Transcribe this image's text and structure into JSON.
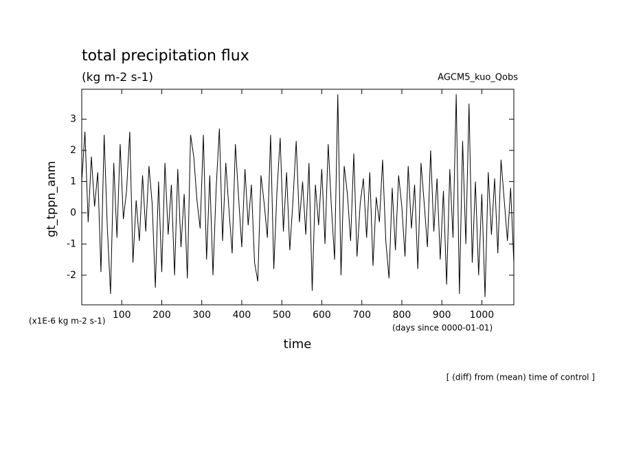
{
  "chart_data": {
    "type": "line",
    "title": "total precipitation flux",
    "subtitle": "(kg m-2 s-1)",
    "experiment": "AGCM5_kuo_Qobs",
    "y_label": "gt_tppn_anm",
    "x_label": "time",
    "y_unit": "(x1E-6 kg m-2 s-1)",
    "x_unit": "(days since 0000-01-01)",
    "note": "[ (diff) from (mean) time of control ]",
    "color": "#000000",
    "xlim": [
      0,
      1080
    ],
    "ylim": [
      -2.95,
      3.96
    ],
    "xticks": [
      100,
      200,
      300,
      400,
      500,
      600,
      700,
      800,
      900,
      1000
    ],
    "yticks": [
      -2,
      -1,
      0,
      1,
      2,
      3
    ],
    "x": [
      0,
      8,
      16,
      24,
      32,
      40,
      48,
      56,
      64,
      72,
      80,
      88,
      96,
      104,
      112,
      120,
      128,
      136,
      144,
      152,
      160,
      168,
      176,
      184,
      192,
      200,
      208,
      216,
      224,
      232,
      240,
      248,
      256,
      264,
      272,
      280,
      288,
      296,
      304,
      312,
      320,
      328,
      336,
      344,
      352,
      360,
      368,
      376,
      384,
      392,
      400,
      408,
      416,
      424,
      432,
      440,
      448,
      456,
      464,
      472,
      480,
      488,
      496,
      504,
      512,
      520,
      528,
      536,
      544,
      552,
      560,
      568,
      576,
      584,
      592,
      600,
      608,
      616,
      624,
      632,
      640,
      648,
      656,
      664,
      672,
      680,
      688,
      696,
      704,
      712,
      720,
      728,
      736,
      744,
      752,
      760,
      768,
      776,
      784,
      792,
      800,
      808,
      816,
      824,
      832,
      840,
      848,
      856,
      864,
      872,
      880,
      888,
      896,
      904,
      912,
      920,
      928,
      936,
      944,
      952,
      960,
      968,
      976,
      984,
      992,
      1000,
      1008,
      1016,
      1024,
      1032,
      1040,
      1048,
      1056,
      1064,
      1072,
      1080
    ],
    "values": [
      1.0,
      2.6,
      -0.3,
      1.8,
      0.2,
      1.3,
      -1.9,
      2.5,
      -0.5,
      -2.6,
      1.6,
      -0.8,
      2.2,
      -0.2,
      0.7,
      2.6,
      -1.6,
      0.4,
      -0.9,
      1.2,
      -0.6,
      1.5,
      0.3,
      -2.4,
      1.0,
      -1.9,
      1.6,
      -0.7,
      0.9,
      -2.0,
      1.4,
      -1.1,
      0.6,
      -2.1,
      2.5,
      1.8,
      0.4,
      -0.5,
      2.5,
      -1.5,
      1.2,
      -2.0,
      0.8,
      2.7,
      -0.9,
      1.6,
      0.1,
      -1.3,
      2.2,
      0.5,
      -1.1,
      1.4,
      -0.4,
      0.9,
      -1.6,
      -2.2,
      1.2,
      0.3,
      -0.8,
      2.5,
      -1.8,
      0.7,
      2.4,
      -0.6,
      1.3,
      -1.2,
      0.4,
      2.3,
      -0.3,
      1.0,
      -0.7,
      1.6,
      -2.5,
      0.9,
      -0.4,
      1.4,
      -1.0,
      2.2,
      0.2,
      -1.5,
      3.8,
      -2.0,
      1.5,
      0.6,
      -0.9,
      1.9,
      -1.4,
      0.3,
      1.1,
      -0.8,
      1.3,
      -1.7,
      0.5,
      -0.3,
      1.7,
      -0.9,
      -2.1,
      0.8,
      -1.2,
      1.2,
      0.2,
      -1.4,
      1.5,
      -0.5,
      0.9,
      -1.8,
      1.6,
      0.3,
      -1.1,
      2.0,
      -0.6,
      1.1,
      -1.5,
      0.7,
      -2.3,
      1.4,
      -0.8,
      3.8,
      -2.6,
      2.3,
      -1.0,
      3.5,
      -1.6,
      1.0,
      -2.0,
      0.6,
      -2.7,
      1.3,
      -0.7,
      1.1,
      -1.3,
      1.7,
      0.4,
      -0.9,
      0.8,
      -1.6
    ]
  }
}
